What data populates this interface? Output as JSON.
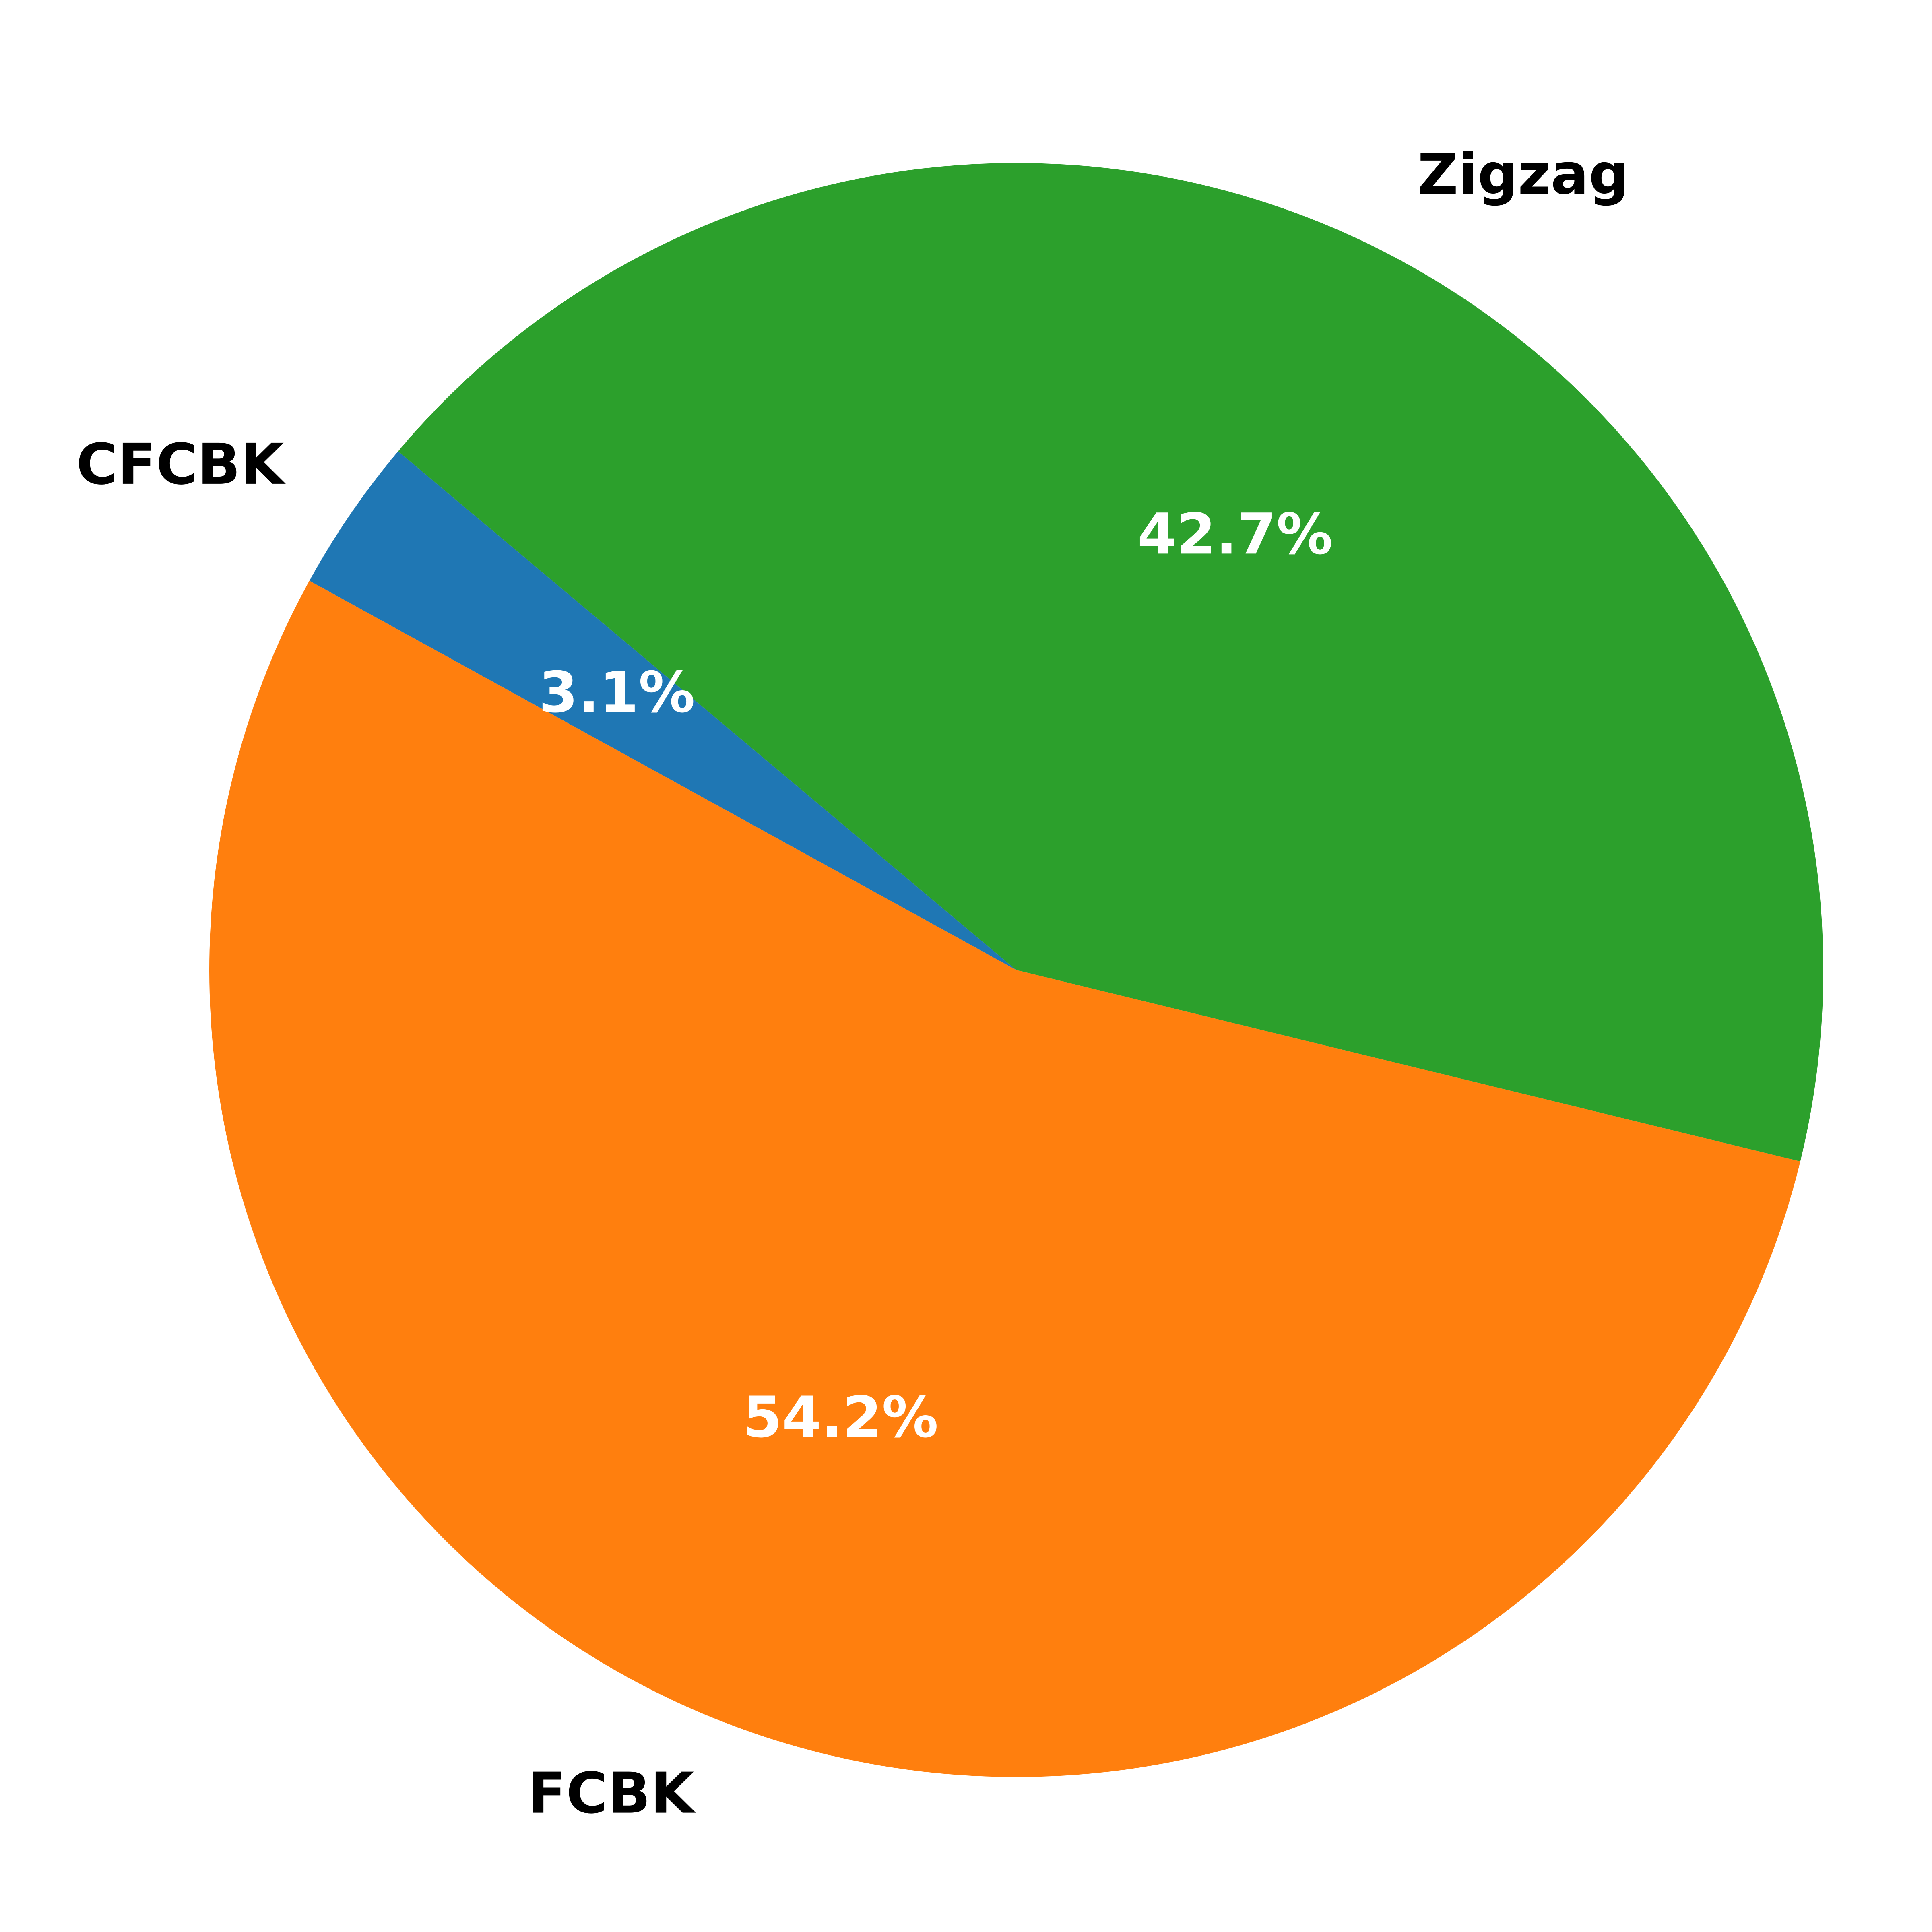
{
  "chart_data": {
    "type": "pie",
    "slices": [
      {
        "label": "CFCBK",
        "value": 3.1,
        "pct_label": "3.1%",
        "color": "#1f77b4"
      },
      {
        "label": "FCBK",
        "value": 54.2,
        "pct_label": "54.2%",
        "color": "#ff7f0e"
      },
      {
        "label": "Zigzag",
        "value": 42.7,
        "pct_label": "42.7%",
        "color": "#2ca02c"
      }
    ]
  }
}
